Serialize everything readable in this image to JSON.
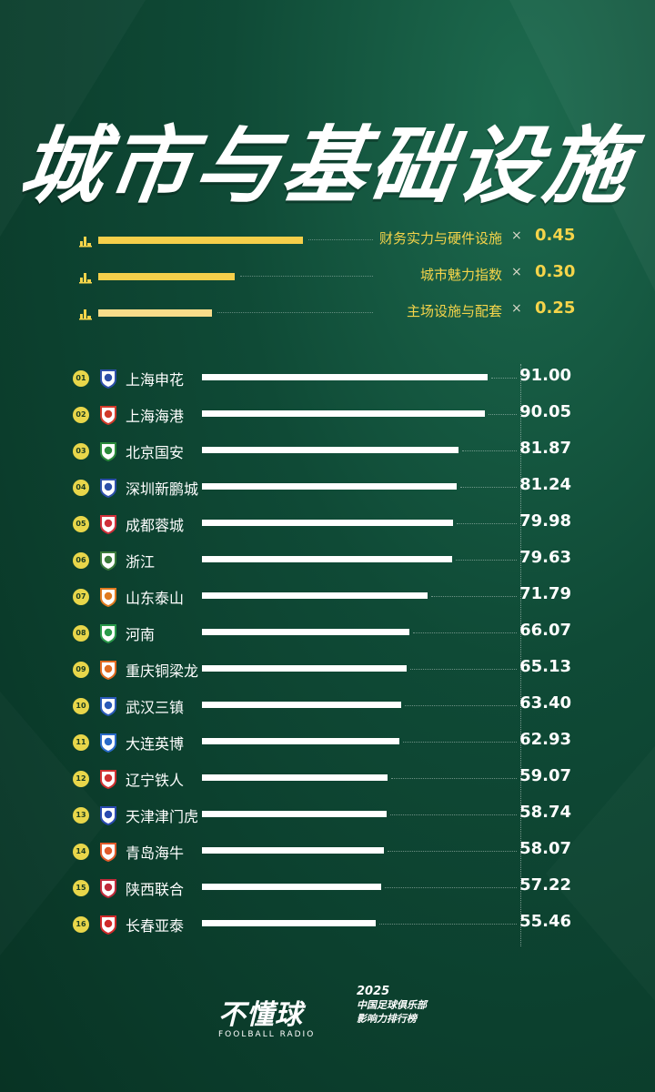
{
  "title": "城市与基础设施",
  "weights": [
    {
      "label": "财务实力与硬件设施",
      "times": "×",
      "value": "0.45",
      "bar_fraction": 0.45,
      "color": "#f5cf4a"
    },
    {
      "label": "城市魅力指数",
      "times": "×",
      "value": "0.30",
      "bar_fraction": 0.3,
      "color": "#f5cf4a"
    },
    {
      "label": "主场设施与配套",
      "times": "×",
      "value": "0.25",
      "bar_fraction": 0.25,
      "color": "#f8dc8a"
    }
  ],
  "chart_data": {
    "type": "bar",
    "orientation": "horizontal",
    "ranks": [
      "01",
      "02",
      "03",
      "04",
      "05",
      "06",
      "07",
      "08",
      "09",
      "10",
      "11",
      "12",
      "13",
      "14",
      "15",
      "16"
    ],
    "categories": [
      "上海申花",
      "上海海港",
      "北京国安",
      "深圳新鹏城",
      "成都蓉城",
      "浙江",
      "山东泰山",
      "河南",
      "重庆铜梁龙",
      "武汉三镇",
      "大连英博",
      "辽宁铁人",
      "天津津门虎",
      "青岛海牛",
      "陕西联合",
      "长春亚泰"
    ],
    "values": [
      91.0,
      90.05,
      81.87,
      81.24,
      79.98,
      79.63,
      71.79,
      66.07,
      65.13,
      63.4,
      62.93,
      59.07,
      58.74,
      58.07,
      57.22,
      55.46
    ],
    "value_labels": [
      "91.00",
      "90.05",
      "81.87",
      "81.24",
      "79.98",
      "79.63",
      "71.79",
      "66.07",
      "65.13",
      "63.40",
      "62.93",
      "59.07",
      "58.74",
      "58.07",
      "57.22",
      "55.46"
    ],
    "title": "城市与基础设施",
    "xlim": [
      0,
      100
    ]
  },
  "logos": [
    {
      "color": "#2c4fa8",
      "icon": "shenhua-crest-icon"
    },
    {
      "color": "#d23a2a",
      "icon": "haigang-crest-icon"
    },
    {
      "color": "#2a8a3a",
      "icon": "guoan-crest-icon"
    },
    {
      "color": "#2c4fa8",
      "icon": "shenzhen-crest-icon"
    },
    {
      "color": "#d0303a",
      "icon": "chengdu-crest-icon"
    },
    {
      "color": "#3a7a3a",
      "icon": "zhejiang-crest-icon"
    },
    {
      "color": "#e07a20",
      "icon": "taishan-crest-icon"
    },
    {
      "color": "#2a9a4a",
      "icon": "henan-crest-icon"
    },
    {
      "color": "#e06a20",
      "icon": "chongqing-crest-icon"
    },
    {
      "color": "#2a5ab8",
      "icon": "wuhan-crest-icon"
    },
    {
      "color": "#2a6ac8",
      "icon": "dalian-crest-icon"
    },
    {
      "color": "#d03030",
      "icon": "liaoning-crest-icon"
    },
    {
      "color": "#2a4ab0",
      "icon": "tianjin-crest-icon"
    },
    {
      "color": "#e05a2a",
      "icon": "qingdao-crest-icon"
    },
    {
      "color": "#c02a3a",
      "icon": "shaanxi-crest-icon"
    },
    {
      "color": "#d02a2a",
      "icon": "changchun-crest-icon"
    }
  ],
  "footer": {
    "brand": "不懂球",
    "brand_sub": "FOOLBALL RADIO",
    "year": "2025",
    "line1": "中国足球俱乐部",
    "line2": "影响力排行榜"
  }
}
